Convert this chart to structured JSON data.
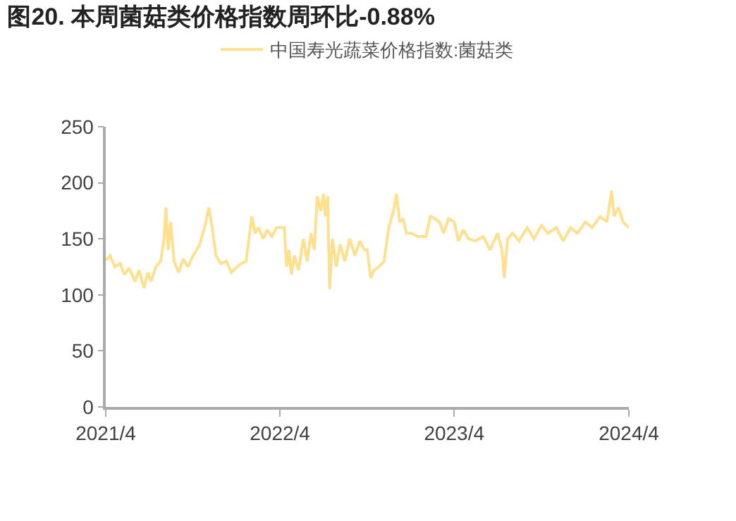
{
  "chart_data": {
    "type": "line",
    "title": "图20. 本周菌菇类价格指数周环比-0.88%",
    "x": [
      "2021-04-01",
      "2021-04-10",
      "2021-04-20",
      "2021-05-01",
      "2021-05-10",
      "2021-05-20",
      "2021-06-01",
      "2021-06-10",
      "2021-06-20",
      "2021-06-28",
      "2021-07-05",
      "2021-07-15",
      "2021-07-25",
      "2021-08-01",
      "2021-08-05",
      "2021-08-10",
      "2021-08-15",
      "2021-08-22",
      "2021-09-01",
      "2021-09-10",
      "2021-09-20",
      "2021-10-01",
      "2021-10-15",
      "2021-10-25",
      "2021-11-03",
      "2021-11-10",
      "2021-11-18",
      "2021-11-28",
      "2021-12-10",
      "2021-12-20",
      "2022-01-01",
      "2022-01-10",
      "2022-01-20",
      "2022-02-01",
      "2022-02-08",
      "2022-02-15",
      "2022-02-25",
      "2022-03-05",
      "2022-03-15",
      "2022-03-25",
      "2022-04-01",
      "2022-04-10",
      "2022-04-15",
      "2022-04-20",
      "2022-04-25",
      "2022-05-01",
      "2022-05-10",
      "2022-05-20",
      "2022-05-28",
      "2022-06-05",
      "2022-06-12",
      "2022-06-18",
      "2022-06-25",
      "2022-07-01",
      "2022-07-05",
      "2022-07-10",
      "2022-07-14",
      "2022-07-20",
      "2022-07-28",
      "2022-08-05",
      "2022-08-15",
      "2022-08-25",
      "2022-09-05",
      "2022-09-15",
      "2022-09-25",
      "2022-10-01",
      "2022-10-08",
      "2022-10-15",
      "2022-10-25",
      "2022-11-05",
      "2022-11-15",
      "2022-11-25",
      "2022-12-01",
      "2022-12-08",
      "2022-12-15",
      "2022-12-22",
      "2023-01-01",
      "2023-01-15",
      "2023-02-01",
      "2023-02-10",
      "2023-02-20",
      "2023-03-01",
      "2023-03-10",
      "2023-03-20",
      "2023-04-01",
      "2023-04-10",
      "2023-04-20",
      "2023-05-01",
      "2023-05-15",
      "2023-06-01",
      "2023-06-15",
      "2023-07-01",
      "2023-07-10",
      "2023-07-15",
      "2023-07-22",
      "2023-08-01",
      "2023-08-15",
      "2023-09-01",
      "2023-09-15",
      "2023-10-01",
      "2023-10-15",
      "2023-11-01",
      "2023-11-15",
      "2023-12-01",
      "2023-12-15",
      "2024-01-01",
      "2024-01-15",
      "2024-02-01",
      "2024-02-15",
      "2024-02-25",
      "2024-03-01",
      "2024-03-10",
      "2024-03-20",
      "2024-04-01"
    ],
    "series": [
      {
        "name": "中国寿光蔬菜价格指数:菌菇类",
        "color": "#ffe08f",
        "values": [
          131,
          135,
          125,
          128,
          118,
          124,
          112,
          122,
          106,
          120,
          112,
          125,
          130,
          150,
          178,
          140,
          165,
          130,
          120,
          132,
          125,
          135,
          145,
          160,
          178,
          160,
          135,
          128,
          130,
          120,
          125,
          128,
          130,
          170,
          155,
          160,
          150,
          158,
          152,
          160,
          160,
          160,
          125,
          140,
          118,
          135,
          122,
          150,
          130,
          155,
          140,
          188,
          175,
          190,
          170,
          188,
          105,
          150,
          125,
          145,
          130,
          150,
          135,
          148,
          140,
          140,
          115,
          122,
          125,
          130,
          160,
          175,
          190,
          165,
          168,
          155,
          155,
          152,
          152,
          170,
          168,
          165,
          155,
          168,
          165,
          148,
          158,
          150,
          148,
          152,
          140,
          155,
          140,
          115,
          150,
          155,
          148,
          160,
          150,
          162,
          155,
          160,
          148,
          160,
          155,
          165,
          160,
          170,
          165,
          193,
          170,
          178,
          165,
          160
        ]
      }
    ],
    "xlim": [
      "2021-04-01",
      "2024-04-01"
    ],
    "xticks": [
      {
        "value": "2021-04-01",
        "label": "2021/4"
      },
      {
        "value": "2022-04-01",
        "label": "2022/4"
      },
      {
        "value": "2023-04-01",
        "label": "2023/4"
      },
      {
        "value": "2024-04-01",
        "label": "2024/4"
      }
    ],
    "ylim": [
      0,
      250
    ],
    "yticks": [
      0,
      50,
      100,
      150,
      200,
      250
    ],
    "legend": "top",
    "grid": false,
    "marker": "none",
    "line_style": "solid"
  }
}
